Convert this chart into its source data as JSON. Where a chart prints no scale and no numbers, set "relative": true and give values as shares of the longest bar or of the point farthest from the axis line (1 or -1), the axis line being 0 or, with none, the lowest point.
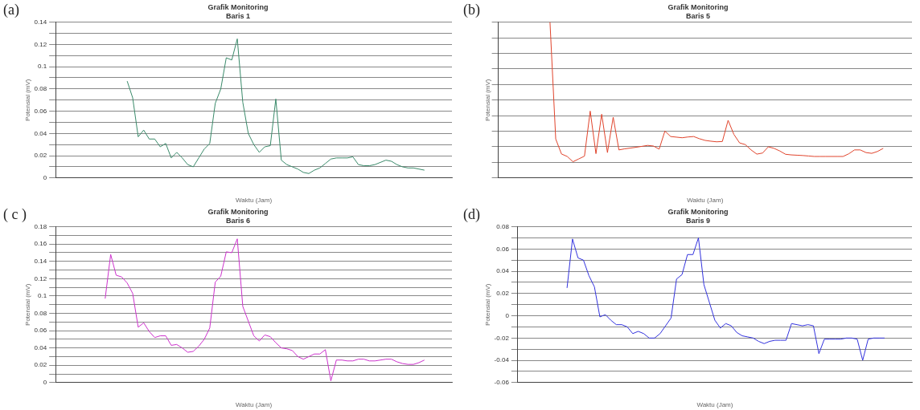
{
  "chart_data": [
    {
      "type": "line",
      "title": "Grafik Monitoring",
      "subtitle": "Baris 1",
      "xlabel": "Waktu (Jam)",
      "ylabel": "Potensial (mV)",
      "annotations": [
        "(a)"
      ],
      "grid": "y",
      "marker": "none",
      "line_style": "solid",
      "categories": [
        null,
        null,
        null,
        null,
        null,
        null,
        null,
        null,
        null,
        null,
        null,
        null,
        null,
        null,
        null,
        null,
        null,
        null,
        null,
        null,
        null,
        null,
        null,
        null,
        null,
        null,
        null,
        null,
        null,
        null,
        null,
        null,
        null,
        null,
        null,
        null,
        null,
        null,
        null,
        null,
        null,
        null,
        null,
        null,
        null,
        null,
        null,
        null,
        null,
        null,
        null,
        null,
        null,
        null,
        null,
        null,
        null,
        null,
        null,
        null,
        null,
        null,
        null,
        null,
        null,
        null,
        null,
        null,
        null,
        null,
        null,
        null,
        null
      ],
      "ylim": [
        0,
        0.14
      ],
      "yticks": [
        0,
        {
          "value": 0.01,
          "label": null
        },
        0.02,
        {
          "value": 0.03,
          "label": null
        },
        0.04,
        {
          "value": 0.05,
          "label": null
        },
        0.06,
        {
          "value": 0.07,
          "label": null
        },
        0.08,
        {
          "value": 0.09,
          "label": null
        },
        0.1,
        {
          "value": 0.11,
          "label": null
        },
        0.12,
        {
          "value": 0.13,
          "label": null
        },
        0.14
      ],
      "series": [
        {
          "color": "#3a8a6a",
          "values": [
            null,
            null,
            null,
            null,
            null,
            null,
            null,
            null,
            null,
            null,
            null,
            null,
            null,
            0.087,
            0.072,
            0.037,
            0.043,
            0.035,
            0.035,
            0.028,
            0.031,
            0.018,
            0.023,
            0.018,
            0.012,
            0.01,
            0.018,
            0.026,
            0.031,
            0.067,
            0.08,
            0.108,
            0.106,
            0.125,
            0.068,
            0.04,
            0.03,
            0.023,
            0.028,
            0.029,
            0.071,
            0.016,
            0.012,
            0.01,
            0.008,
            0.005,
            0.004,
            0.007,
            0.009,
            0.013,
            0.017,
            0.018,
            0.018,
            0.018,
            0.019,
            0.012,
            0.011,
            0.011,
            0.012,
            0.014,
            0.016,
            0.015,
            0.012,
            0.01,
            0.009,
            0.009,
            0.008,
            0.007,
            null,
            null,
            null,
            null,
            null
          ]
        }
      ]
    },
    {
      "type": "line",
      "title": "Grafik Monitoring",
      "subtitle": "Baris 5",
      "xlabel": "Waktu (Jam)",
      "ylabel": "Potensial (mV)",
      "annotations": [
        "(b)"
      ],
      "grid": "y",
      "marker": "none",
      "line_style": "solid",
      "relative": true,
      "categories": [
        null,
        null,
        null,
        null,
        null,
        null,
        null,
        null,
        null,
        null,
        null,
        null,
        null,
        null,
        null,
        null,
        null,
        null,
        null,
        null,
        null,
        null,
        null,
        null,
        null,
        null,
        null,
        null,
        null,
        null,
        null,
        null,
        null,
        null,
        null,
        null,
        null,
        null,
        null,
        null,
        null,
        null,
        null,
        null,
        null,
        null,
        null,
        null,
        null,
        null,
        null,
        null,
        null,
        null,
        null,
        null,
        null,
        null,
        null,
        null,
        null,
        null,
        null,
        null,
        null,
        null,
        null,
        null,
        null,
        null,
        null,
        null,
        null
      ],
      "series": [
        {
          "color": "#e0442c",
          "values": [
            null,
            null,
            null,
            null,
            null,
            null,
            null,
            null,
            null,
            1.0,
            0.25,
            0.154,
            0.138,
            0.104,
            0.122,
            0.14,
            0.429,
            0.156,
            0.409,
            0.163,
            0.39,
            0.18,
            0.187,
            0.192,
            0.197,
            0.203,
            0.209,
            0.205,
            0.185,
            0.301,
            0.266,
            0.262,
            0.258,
            0.263,
            0.266,
            0.252,
            0.241,
            0.236,
            0.232,
            0.234,
            0.37,
            0.28,
            0.225,
            0.214,
            0.18,
            0.153,
            0.16,
            0.2,
            0.19,
            0.173,
            0.152,
            0.148,
            0.146,
            0.144,
            0.141,
            0.138,
            0.138,
            0.138,
            0.138,
            0.138,
            0.138,
            0.155,
            0.18,
            0.18,
            0.163,
            0.158,
            0.17,
            0.19,
            null,
            null,
            null,
            null,
            null
          ]
        }
      ]
    },
    {
      "type": "line",
      "title": "Grafik Monitoring",
      "subtitle": "Baris 6",
      "xlabel": "Waktu (Jam)",
      "ylabel": "Potensial (mV)",
      "annotations": [
        "( c )"
      ],
      "grid": "y",
      "marker": "none",
      "line_style": "solid",
      "categories": [
        null,
        null,
        null,
        null,
        null,
        null,
        null,
        null,
        null,
        null,
        null,
        null,
        null,
        null,
        null,
        null,
        null,
        null,
        null,
        null,
        null,
        null,
        null,
        null,
        null,
        null,
        null,
        null,
        null,
        null,
        null,
        null,
        null,
        null,
        null,
        null,
        null,
        null,
        null,
        null,
        null,
        null,
        null,
        null,
        null,
        null,
        null,
        null,
        null,
        null,
        null,
        null,
        null,
        null,
        null,
        null,
        null,
        null,
        null,
        null,
        null,
        null,
        null,
        null,
        null,
        null,
        null,
        null,
        null,
        null,
        null,
        null,
        null
      ],
      "ylim": [
        0,
        0.18
      ],
      "yticks": [
        0,
        {
          "value": 0.01,
          "label": null
        },
        0.02,
        {
          "value": 0.03,
          "label": null
        },
        0.04,
        {
          "value": 0.05,
          "label": null
        },
        0.06,
        {
          "value": 0.07,
          "label": null
        },
        0.08,
        {
          "value": 0.09,
          "label": null
        },
        0.1,
        {
          "value": 0.11,
          "label": null
        },
        0.12,
        {
          "value": 0.13,
          "label": null
        },
        0.14,
        {
          "value": 0.15,
          "label": null
        },
        0.16,
        {
          "value": 0.17,
          "label": null
        },
        0.18
      ],
      "series": [
        {
          "color": "#cc33cc",
          "values": [
            null,
            null,
            null,
            null,
            null,
            null,
            null,
            null,
            null,
            0.097,
            0.148,
            0.124,
            0.122,
            0.115,
            0.103,
            0.064,
            0.069,
            0.059,
            0.052,
            0.054,
            0.054,
            0.043,
            0.044,
            0.04,
            0.035,
            0.036,
            0.042,
            0.05,
            0.063,
            0.116,
            0.123,
            0.151,
            0.15,
            0.166,
            0.088,
            0.071,
            0.054,
            0.048,
            0.055,
            0.053,
            0.046,
            0.04,
            0.039,
            0.037,
            0.03,
            0.027,
            0.03,
            0.033,
            0.033,
            0.038,
            0.002,
            0.026,
            0.026,
            0.025,
            0.025,
            0.027,
            0.027,
            0.025,
            0.025,
            0.026,
            0.027,
            0.027,
            0.024,
            0.022,
            0.021,
            0.021,
            0.023,
            0.026,
            null,
            null,
            null,
            null,
            null
          ]
        }
      ]
    },
    {
      "type": "line",
      "title": "Grafik Monitoring",
      "subtitle": "Baris 9",
      "xlabel": "Waktu (Jam)",
      "ylabel": "Potensial (mV)",
      "annotations": [
        "(d)"
      ],
      "grid": "y",
      "marker": "none",
      "line_style": "solid",
      "categories": [
        null,
        null,
        null,
        null,
        null,
        null,
        null,
        null,
        null,
        null,
        null,
        null,
        null,
        null,
        null,
        null,
        null,
        null,
        null,
        null,
        null,
        null,
        null,
        null,
        null,
        null,
        null,
        null,
        null,
        null,
        null,
        null,
        null,
        null,
        null,
        null,
        null,
        null,
        null,
        null,
        null,
        null,
        null,
        null,
        null,
        null,
        null,
        null,
        null,
        null,
        null,
        null,
        null,
        null,
        null,
        null,
        null,
        null,
        null,
        null,
        null,
        null,
        null,
        null,
        null,
        null,
        null,
        null,
        null,
        null,
        null,
        null,
        null
      ],
      "ylim": [
        -0.06,
        0.08
      ],
      "yticks": [
        -0.06,
        {
          "value": -0.05,
          "label": null
        },
        -0.04,
        {
          "value": -0.03,
          "label": null
        },
        -0.02,
        {
          "value": -0.01,
          "label": null
        },
        0,
        {
          "value": 0.01,
          "label": null
        },
        0.02,
        {
          "value": 0.03,
          "label": null
        },
        0.04,
        {
          "value": 0.05,
          "label": null
        },
        0.06,
        {
          "value": 0.07,
          "label": null
        },
        0.08
      ],
      "series": [
        {
          "color": "#3333dd",
          "values": [
            null,
            null,
            null,
            null,
            null,
            null,
            null,
            null,
            null,
            0.025,
            0.069,
            0.052,
            0.05,
            0.036,
            0.026,
            -0.001,
            0.001,
            -0.004,
            -0.008,
            -0.008,
            -0.01,
            -0.016,
            -0.014,
            -0.016,
            -0.02,
            -0.02,
            -0.016,
            -0.009,
            -0.002,
            0.033,
            0.037,
            0.055,
            0.055,
            0.07,
            0.028,
            0.012,
            -0.004,
            -0.011,
            -0.007,
            -0.009,
            -0.015,
            -0.018,
            -0.019,
            -0.02,
            -0.023,
            -0.025,
            -0.023,
            -0.022,
            -0.022,
            -0.022,
            -0.007,
            -0.008,
            -0.009,
            -0.008,
            -0.009,
            -0.034,
            -0.021,
            -0.021,
            -0.021,
            -0.021,
            -0.02,
            -0.02,
            -0.021,
            -0.04,
            -0.021,
            -0.02,
            -0.02,
            -0.02,
            null,
            null,
            null,
            null,
            null
          ]
        }
      ]
    }
  ]
}
